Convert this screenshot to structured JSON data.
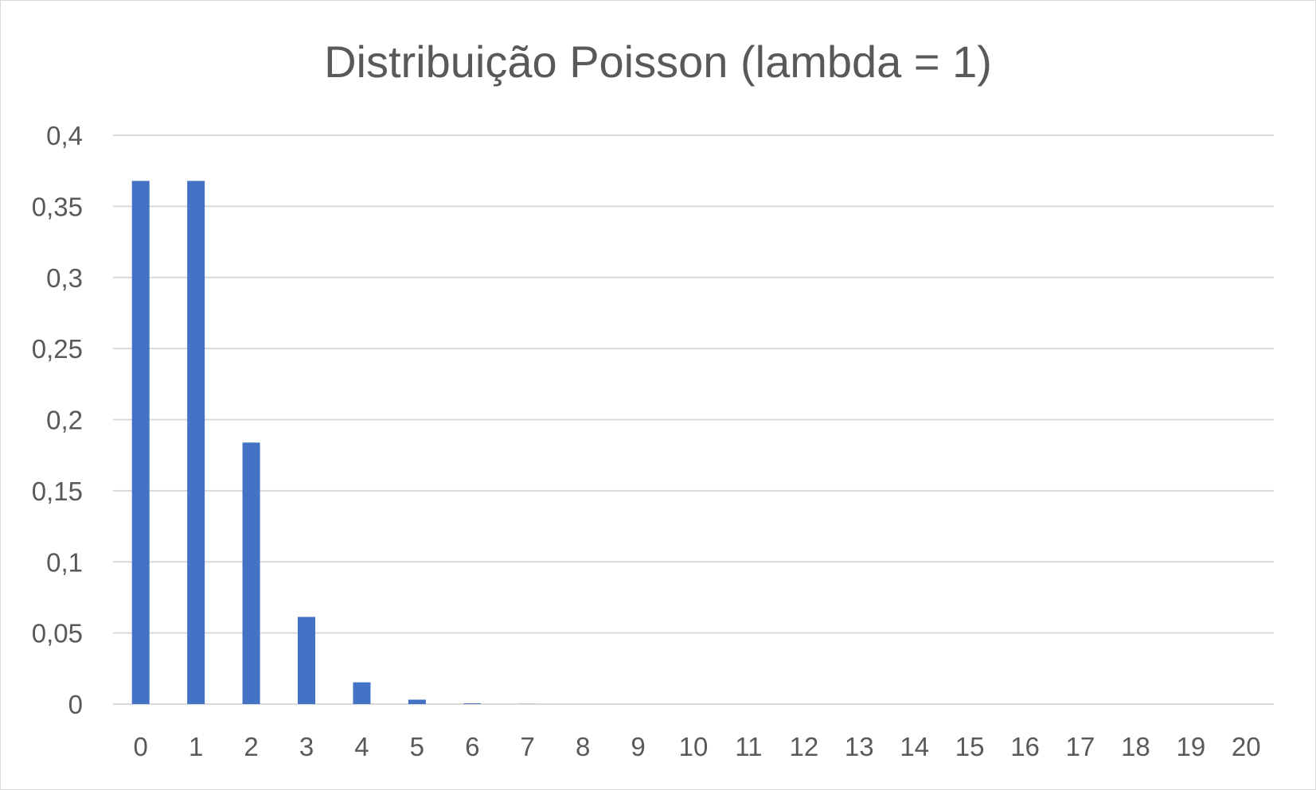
{
  "chart_data": {
    "type": "bar",
    "title": "Distribuição Poisson (lambda = 1)",
    "xlabel": "",
    "ylabel": "",
    "categories": [
      "0",
      "1",
      "2",
      "3",
      "4",
      "5",
      "6",
      "7",
      "8",
      "9",
      "10",
      "11",
      "12",
      "13",
      "14",
      "15",
      "16",
      "17",
      "18",
      "19",
      "20"
    ],
    "values": [
      0.3679,
      0.3679,
      0.1839,
      0.0613,
      0.0153,
      0.0031,
      0.0005,
      0.0001,
      0,
      0,
      0,
      0,
      0,
      0,
      0,
      0,
      0,
      0,
      0,
      0,
      0
    ],
    "ylim": [
      0,
      0.4
    ],
    "yticks": [
      0,
      0.05,
      0.1,
      0.15,
      0.2,
      0.25,
      0.3,
      0.35,
      0.4
    ],
    "ytick_labels": [
      "0",
      "0,05",
      "0,1",
      "0,15",
      "0,2",
      "0,25",
      "0,3",
      "0,35",
      "0,4"
    ],
    "grid": true,
    "legend": "none",
    "colors": {
      "bar": "#4472c4",
      "grid": "#d9d9d9",
      "text": "#595959"
    }
  }
}
